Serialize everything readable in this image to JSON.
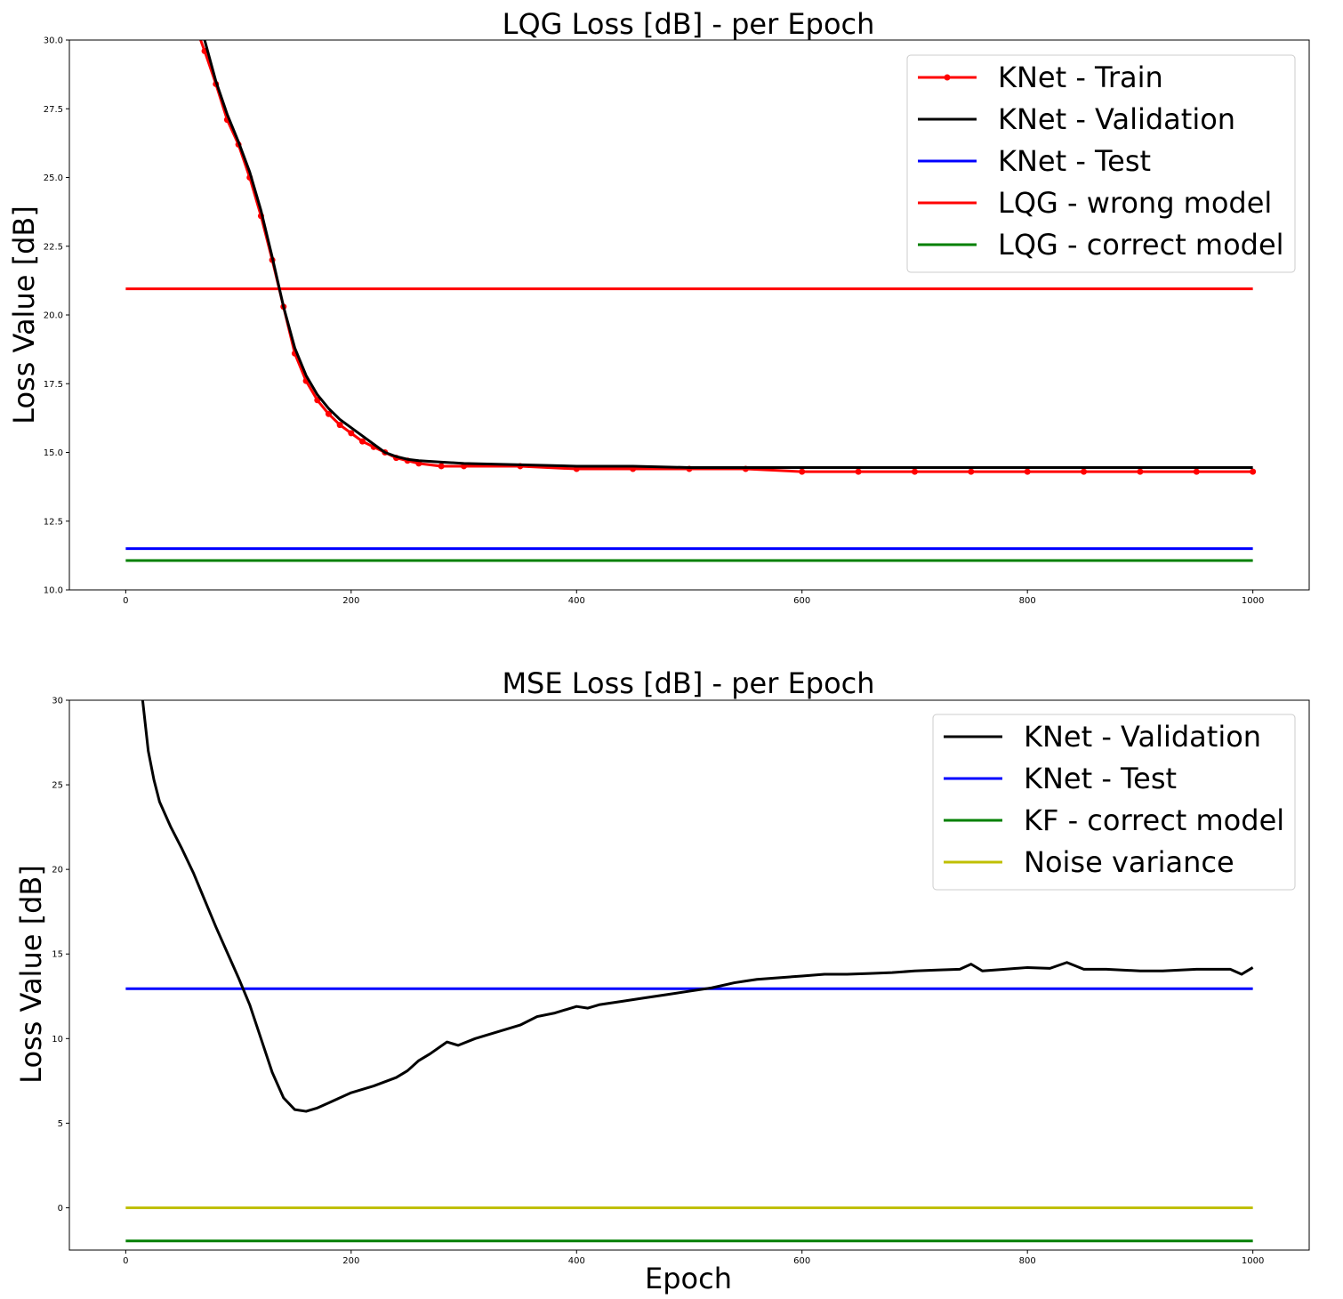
{
  "chart_data": [
    {
      "type": "line",
      "title": "LQG Loss [dB] - per Epoch",
      "xlabel": "",
      "ylabel": "Loss Value [dB]",
      "xlim": [
        -50,
        1050
      ],
      "ylim": [
        10.0,
        30.0
      ],
      "xticks": [
        0,
        200,
        400,
        600,
        800,
        1000
      ],
      "yticks": [
        10.0,
        12.5,
        15.0,
        17.5,
        20.0,
        22.5,
        25.0,
        27.5,
        30.0
      ],
      "ytick_decimals": 1,
      "legend_position": "top-right",
      "series": [
        {
          "name": "KNet - Train",
          "color": "#ff0000",
          "style": "line-markers",
          "x": [
            62,
            70,
            80,
            90,
            100,
            110,
            120,
            130,
            140,
            150,
            160,
            170,
            180,
            190,
            200,
            210,
            220,
            230,
            240,
            250,
            260,
            280,
            300,
            350,
            400,
            450,
            500,
            550,
            600,
            650,
            700,
            750,
            800,
            850,
            900,
            950,
            1000
          ],
          "values": [
            30.5,
            29.6,
            28.4,
            27.1,
            26.2,
            25.0,
            23.6,
            22.0,
            20.3,
            18.6,
            17.6,
            16.9,
            16.4,
            16.0,
            15.7,
            15.4,
            15.2,
            15.0,
            14.8,
            14.7,
            14.6,
            14.5,
            14.5,
            14.5,
            14.4,
            14.4,
            14.4,
            14.4,
            14.3,
            14.3,
            14.3,
            14.3,
            14.3,
            14.3,
            14.3,
            14.3,
            14.3
          ]
        },
        {
          "name": "KNet - Validation",
          "color": "#000000",
          "style": "line",
          "x": [
            62,
            70,
            80,
            90,
            100,
            110,
            120,
            130,
            140,
            150,
            160,
            170,
            180,
            190,
            200,
            210,
            220,
            230,
            240,
            250,
            260,
            280,
            300,
            350,
            400,
            450,
            500,
            550,
            600,
            650,
            700,
            750,
            800,
            850,
            900,
            950,
            1000
          ],
          "values": [
            31.0,
            30.0,
            28.5,
            27.3,
            26.3,
            25.2,
            23.8,
            22.1,
            20.3,
            18.8,
            17.8,
            17.1,
            16.6,
            16.2,
            15.9,
            15.6,
            15.3,
            15.0,
            14.85,
            14.75,
            14.7,
            14.65,
            14.6,
            14.55,
            14.5,
            14.5,
            14.45,
            14.45,
            14.45,
            14.45,
            14.45,
            14.45,
            14.45,
            14.45,
            14.45,
            14.45,
            14.45
          ]
        },
        {
          "name": "KNet - Test",
          "color": "#0000ff",
          "style": "line",
          "x": [
            0,
            1000
          ],
          "values": [
            11.5,
            11.5
          ]
        },
        {
          "name": "LQG - wrong model",
          "color": "#ff0000",
          "style": "line",
          "x": [
            0,
            1000
          ],
          "values": [
            20.95,
            20.95
          ]
        },
        {
          "name": "LQG - correct model",
          "color": "#008000",
          "style": "line",
          "x": [
            0,
            1000
          ],
          "values": [
            11.07,
            11.07
          ]
        }
      ]
    },
    {
      "type": "line",
      "title": "MSE Loss [dB] - per Epoch",
      "xlabel": "Epoch",
      "ylabel": "Loss Value [dB]",
      "xlim": [
        -50,
        1050
      ],
      "ylim": [
        -2.5,
        30
      ],
      "xticks": [
        0,
        200,
        400,
        600,
        800,
        1000
      ],
      "yticks": [
        0,
        5,
        10,
        15,
        20,
        25,
        30
      ],
      "ytick_decimals": 0,
      "legend_position": "top-right",
      "series": [
        {
          "name": "KNet - Validation",
          "color": "#000000",
          "style": "line",
          "x": [
            15,
            20,
            25,
            30,
            40,
            50,
            60,
            70,
            80,
            90,
            100,
            110,
            120,
            130,
            140,
            150,
            160,
            170,
            180,
            200,
            220,
            240,
            250,
            260,
            270,
            285,
            295,
            310,
            330,
            350,
            365,
            380,
            400,
            410,
            420,
            440,
            460,
            480,
            500,
            520,
            540,
            550,
            560,
            580,
            600,
            620,
            640,
            660,
            680,
            700,
            720,
            740,
            750,
            760,
            780,
            800,
            820,
            835,
            850,
            870,
            900,
            920,
            950,
            980,
            990,
            1000
          ],
          "values": [
            30.0,
            27.0,
            25.3,
            24.0,
            22.5,
            21.2,
            19.8,
            18.2,
            16.6,
            15.1,
            13.6,
            12.0,
            10.0,
            8.0,
            6.5,
            5.8,
            5.7,
            5.9,
            6.2,
            6.8,
            7.2,
            7.7,
            8.1,
            8.7,
            9.1,
            9.8,
            9.6,
            10.0,
            10.4,
            10.8,
            11.3,
            11.5,
            11.9,
            11.8,
            12.0,
            12.2,
            12.4,
            12.6,
            12.8,
            13.0,
            13.3,
            13.4,
            13.5,
            13.6,
            13.7,
            13.8,
            13.8,
            13.85,
            13.9,
            14.0,
            14.05,
            14.1,
            14.4,
            14.0,
            14.1,
            14.2,
            14.15,
            14.5,
            14.1,
            14.1,
            14.0,
            14.0,
            14.1,
            14.1,
            13.8,
            14.2
          ]
        },
        {
          "name": "KNet - Test",
          "color": "#0000ff",
          "style": "line",
          "x": [
            0,
            1000
          ],
          "values": [
            12.95,
            12.95
          ]
        },
        {
          "name": "KF - correct model",
          "color": "#008000",
          "style": "line",
          "x": [
            0,
            1000
          ],
          "values": [
            -1.96,
            -1.96
          ]
        },
        {
          "name": "Noise variance",
          "color": "#bfbf00",
          "style": "line",
          "x": [
            0,
            1000
          ],
          "values": [
            0.0,
            0.0
          ]
        }
      ]
    }
  ]
}
